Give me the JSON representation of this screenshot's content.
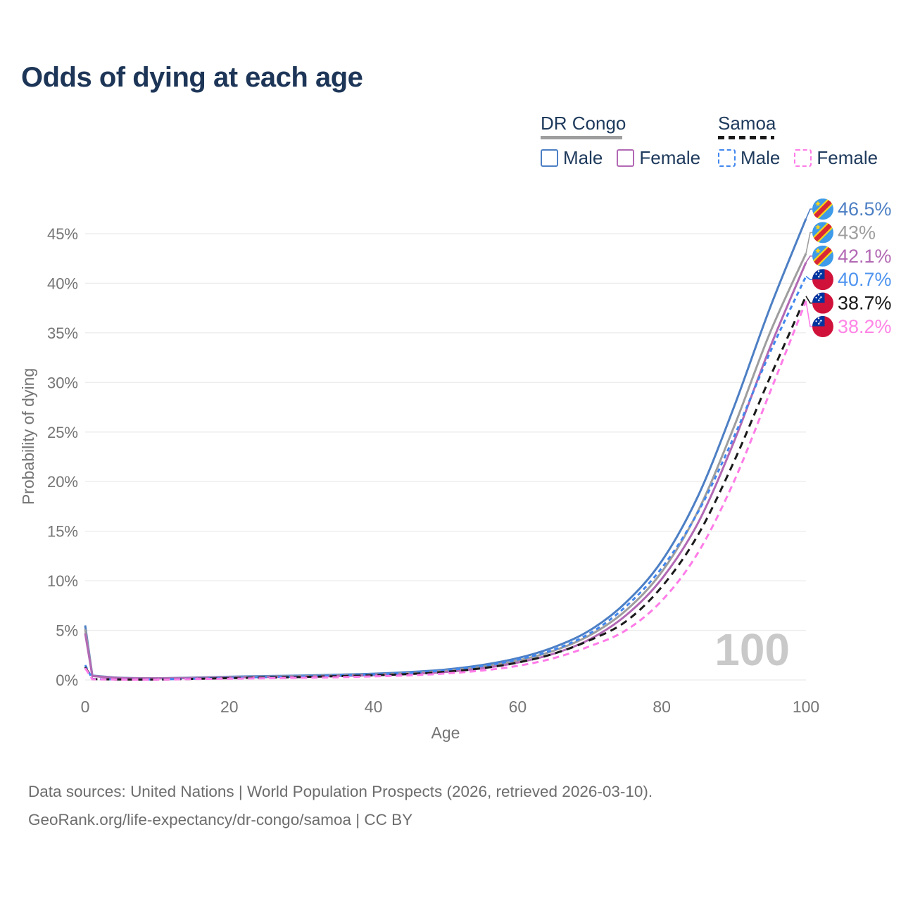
{
  "title": "Odds of dying at each age",
  "legend": {
    "groups": [
      {
        "country": "DR Congo",
        "line_style": "solid",
        "underline_color": "#9e9e9e",
        "items": [
          {
            "label": "Male",
            "color": "#4d7fc4",
            "dashed": false
          },
          {
            "label": "Female",
            "color": "#b269b4",
            "dashed": false
          }
        ]
      },
      {
        "country": "Samoa",
        "line_style": "dashed",
        "underline_color": "#1a1a1a",
        "items": [
          {
            "label": "Male",
            "color": "#4287ee",
            "dashed": true
          },
          {
            "label": "Female",
            "color": "#ff7ce8",
            "dashed": true
          }
        ]
      }
    ]
  },
  "axes": {
    "y_label": "Probability of dying",
    "x_label": "Age",
    "y_ticks": [
      {
        "value": 0,
        "label": "0%"
      },
      {
        "value": 5,
        "label": "5%"
      },
      {
        "value": 10,
        "label": "10%"
      },
      {
        "value": 15,
        "label": "15%"
      },
      {
        "value": 20,
        "label": "20%"
      },
      {
        "value": 25,
        "label": "25%"
      },
      {
        "value": 30,
        "label": "30%"
      },
      {
        "value": 35,
        "label": "35%"
      },
      {
        "value": 40,
        "label": "40%"
      },
      {
        "value": 45,
        "label": "45%"
      }
    ],
    "x_ticks": [
      {
        "value": 0,
        "label": "0"
      },
      {
        "value": 20,
        "label": "20"
      },
      {
        "value": 40,
        "label": "40"
      },
      {
        "value": 60,
        "label": "60"
      },
      {
        "value": 80,
        "label": "80"
      },
      {
        "value": 100,
        "label": "100"
      }
    ]
  },
  "watermark": "100",
  "chart_data": {
    "type": "line",
    "title": "Odds of dying at each age",
    "xlabel": "Age",
    "ylabel": "Probability of dying",
    "xlim": [
      0,
      100
    ],
    "ylim": [
      0,
      47
    ],
    "grid": "horizontal-only",
    "legend_position": "top-right",
    "x": [
      0,
      1,
      5,
      10,
      15,
      20,
      25,
      30,
      35,
      40,
      45,
      50,
      55,
      60,
      65,
      70,
      75,
      80,
      85,
      90,
      95,
      100
    ],
    "series": [
      {
        "name": "DR Congo Male",
        "country": "DR Congo",
        "sex": "Male",
        "color": "#4d7fc4",
        "dash": null,
        "end_label": "46.5%",
        "end_value": 46.5,
        "label_color": "#4d7fc4",
        "flag": "dr-congo-flag",
        "values": [
          5.5,
          0.45,
          0.22,
          0.18,
          0.24,
          0.33,
          0.39,
          0.45,
          0.53,
          0.63,
          0.8,
          1.05,
          1.5,
          2.2,
          3.3,
          5.0,
          7.8,
          12.0,
          18.5,
          27.5,
          37.5,
          46.5
        ]
      },
      {
        "name": "DR Congo Both sexes",
        "country": "DR Congo",
        "sex": "Both",
        "color": "#9e9e9e",
        "dash": null,
        "end_label": "43%",
        "end_value": 43,
        "label_color": "#9e9e9e",
        "flag": "dr-congo-flag",
        "values": [
          5.1,
          0.42,
          0.2,
          0.17,
          0.21,
          0.29,
          0.34,
          0.39,
          0.46,
          0.55,
          0.69,
          0.92,
          1.32,
          1.95,
          2.95,
          4.5,
          7.0,
          10.9,
          17.0,
          25.5,
          35.0,
          43.0
        ]
      },
      {
        "name": "DR Congo Female",
        "country": "DR Congo",
        "sex": "Female",
        "color": "#b269b4",
        "dash": null,
        "end_label": "42.1%",
        "end_value": 42.1,
        "label_color": "#b269b4",
        "flag": "dr-congo-flag",
        "values": [
          4.7,
          0.4,
          0.19,
          0.16,
          0.19,
          0.25,
          0.29,
          0.33,
          0.4,
          0.48,
          0.6,
          0.81,
          1.17,
          1.75,
          2.65,
          4.1,
          6.5,
          10.2,
          15.8,
          24.0,
          33.5,
          42.1
        ]
      },
      {
        "name": "Samoa Male",
        "country": "Samoa",
        "sex": "Male",
        "color": "#4287ee",
        "dash": "6 5",
        "end_label": "40.7%",
        "end_value": 40.7,
        "label_color": "#4f94ef",
        "flag": "samoa-flag",
        "values": [
          1.5,
          0.1,
          0.06,
          0.06,
          0.13,
          0.22,
          0.29,
          0.36,
          0.45,
          0.56,
          0.72,
          0.97,
          1.4,
          2.05,
          3.05,
          4.7,
          7.4,
          11.3,
          16.9,
          24.5,
          33.0,
          40.7
        ]
      },
      {
        "name": "Samoa Both sexes",
        "country": "Samoa",
        "sex": "Both",
        "color": "#1a1a1a",
        "dash": "10 7",
        "end_label": "38.7%",
        "end_value": 38.7,
        "label_color": "#1a1a1a",
        "flag": "samoa-flag",
        "values": [
          1.3,
          0.09,
          0.05,
          0.05,
          0.11,
          0.18,
          0.24,
          0.3,
          0.38,
          0.47,
          0.6,
          0.82,
          1.18,
          1.75,
          2.65,
          4.0,
          5.9,
          9.4,
          14.6,
          22.0,
          30.5,
          38.7
        ]
      },
      {
        "name": "Samoa Female",
        "country": "Samoa",
        "sex": "Female",
        "color": "#ff7ce8",
        "dash": "9 6",
        "end_label": "38.2%",
        "end_value": 38.2,
        "label_color": "#ff85e6",
        "flag": "samoa-flag",
        "values": [
          1.2,
          0.08,
          0.04,
          0.04,
          0.09,
          0.13,
          0.17,
          0.22,
          0.28,
          0.36,
          0.47,
          0.65,
          0.95,
          1.42,
          2.2,
          3.4,
          5.0,
          8.0,
          12.8,
          20.0,
          29.0,
          38.2
        ]
      }
    ]
  },
  "flags": {
    "dr-congo-flag": {
      "blue": "#3d9be9",
      "red": "#d92735",
      "yellow": "#f7d618"
    },
    "samoa-flag": {
      "red": "#d0123a",
      "blue": "#0035a0",
      "star": "#ffffff"
    }
  },
  "colors": {
    "title": "#1d3557",
    "legend_text": "#1e3a5c",
    "axis_text": "#757575",
    "gridline": "#ededed",
    "watermark": "#c9c9c9",
    "footer_text": "#6d6d6d"
  },
  "footer": {
    "line1": "Data sources: United Nations | World Population Prospects (2026, retrieved 2026-03-10).",
    "line2": "GeoRank.org/life-expectancy/dr-congo/samoa | CC BY"
  }
}
